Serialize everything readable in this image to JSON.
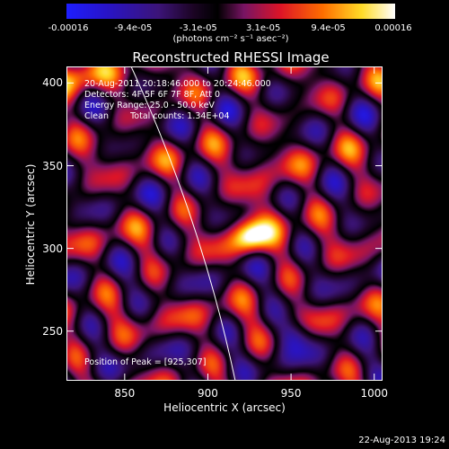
{
  "colorbar": {
    "tick_labels": [
      "-0.00016",
      "-9.4e-05",
      "-3.1e-05",
      "3.1e-05",
      "9.4e-05",
      "0.00016"
    ],
    "units_label": "(photons cm⁻² s⁻¹ asec⁻²)",
    "range": [
      -0.00016,
      0.00016
    ]
  },
  "chart_data": {
    "type": "heatmap",
    "title": "Reconstructed RHESSI Image",
    "xlabel": "Heliocentric X (arcsec)",
    "ylabel": "Heliocentric Y (arcsec)",
    "xlim": [
      815,
      1005
    ],
    "ylim": [
      220,
      410
    ],
    "x_tick_labels": [
      "850",
      "900",
      "950",
      "1000"
    ],
    "y_tick_labels": [
      "250",
      "300",
      "350",
      "400"
    ],
    "annotations": [
      "20-Aug-2011 20:18:46.000 to 20:24:46.000",
      "Detectors: 4F 5F 6F 7F 8F, Att 0",
      "Energy Range: 25.0 - 50.0 keV",
      "Clean        Total counts: 1.34E+04"
    ],
    "peak_label": "Position of Peak = [925,307]",
    "peak_position": [
      925,
      307
    ],
    "colormap": "blue-purple-red-yellow-white"
  },
  "footer": {
    "date": "22-Aug-2013 19:24"
  },
  "colors": {
    "background": "#000000",
    "text": "#ffffff"
  }
}
